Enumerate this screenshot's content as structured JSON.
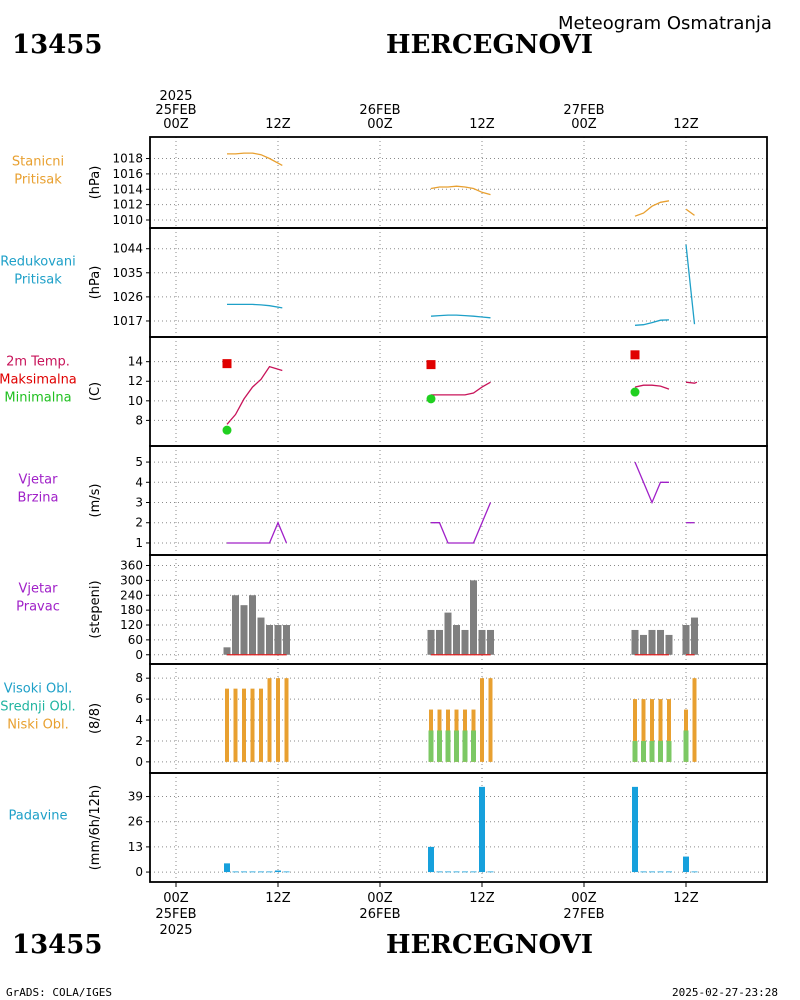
{
  "header": {
    "station_id": "13455",
    "station_name": "HERCEGNOVI",
    "product": "Meteogram Osmatranja"
  },
  "footer": {
    "station_id": "13455",
    "station_name": "HERCEGNOVI",
    "credit": "GrADS: COLA/IGES",
    "timestamp": "2025-02-27-23:28"
  },
  "time_axis": {
    "top_labels": [
      {
        "hour": 0,
        "lines": [
          "2025",
          "25FEB",
          "00Z"
        ]
      },
      {
        "hour": 12,
        "lines": [
          "12Z"
        ]
      },
      {
        "hour": 24,
        "lines": [
          "26FEB",
          "00Z"
        ]
      },
      {
        "hour": 36,
        "lines": [
          "12Z"
        ]
      },
      {
        "hour": 48,
        "lines": [
          "27FEB",
          "00Z"
        ]
      },
      {
        "hour": 60,
        "lines": [
          "12Z"
        ]
      }
    ],
    "bottom_labels": [
      {
        "hour": 0,
        "lines": [
          "00Z",
          "25FEB",
          "2025"
        ]
      },
      {
        "hour": 12,
        "lines": [
          "12Z"
        ]
      },
      {
        "hour": 24,
        "lines": [
          "00Z",
          "26FEB"
        ]
      },
      {
        "hour": 36,
        "lines": [
          "12Z"
        ]
      },
      {
        "hour": 48,
        "lines": [
          "00Z",
          "27FEB"
        ]
      },
      {
        "hour": 60,
        "lines": [
          "12Z"
        ]
      }
    ]
  },
  "chart_data": [
    {
      "type": "line",
      "panel": "stanicni-pritisak",
      "labels": [
        {
          "text": "Stanicni",
          "color": "#e8a030"
        },
        {
          "text": "Pritisak",
          "color": "#e8a030"
        }
      ],
      "ylabel": "(hPa)",
      "ylim": [
        1010,
        1019.5
      ],
      "yticks": [
        "1010",
        "1012",
        "1014",
        "1016",
        "1018"
      ],
      "yticks_values": [
        1010,
        1012,
        1014,
        1016,
        1018
      ],
      "color": "#e8a030",
      "segments": [
        [
          [
            6,
            1018.6
          ],
          [
            7,
            1018.6
          ],
          [
            8,
            1018.7
          ],
          [
            9,
            1018.7
          ],
          [
            10,
            1018.5
          ],
          [
            11,
            1018.0
          ],
          [
            12.5,
            1017.1
          ]
        ],
        [
          [
            30,
            1014.1
          ],
          [
            31,
            1014.3
          ],
          [
            32,
            1014.3
          ],
          [
            33,
            1014.4
          ],
          [
            34,
            1014.3
          ],
          [
            35,
            1014.1
          ],
          [
            36,
            1013.6
          ],
          [
            37,
            1013.3
          ]
        ],
        [
          [
            54,
            1010.5
          ],
          [
            55,
            1010.9
          ],
          [
            56,
            1011.8
          ],
          [
            57,
            1012.3
          ],
          [
            58,
            1012.5
          ]
        ],
        [
          [
            60,
            1011.4
          ],
          [
            61,
            1010.6
          ]
        ]
      ]
    },
    {
      "type": "line",
      "panel": "redukovani-pritisak",
      "labels": [
        {
          "text": "Redukovani",
          "color": "#1ea0c8"
        },
        {
          "text": "Pritisak",
          "color": "#1ea0c8"
        }
      ],
      "ylabel": "(hPa)",
      "ylim": [
        1014,
        1048
      ],
      "yticks": [
        "1017",
        "1026",
        "1035",
        "1044"
      ],
      "yticks_values": [
        1017,
        1026,
        1035,
        1044
      ],
      "color": "#1ea0c8",
      "segments": [
        [
          [
            6,
            1023.2
          ],
          [
            7,
            1023.2
          ],
          [
            8,
            1023.2
          ],
          [
            9,
            1023.2
          ],
          [
            10,
            1023.0
          ],
          [
            11,
            1022.7
          ],
          [
            12.5,
            1021.9
          ]
        ],
        [
          [
            30,
            1018.8
          ],
          [
            31,
            1019.0
          ],
          [
            32,
            1019.2
          ],
          [
            33,
            1019.2
          ],
          [
            34,
            1019.0
          ],
          [
            35,
            1018.8
          ],
          [
            36,
            1018.5
          ],
          [
            37,
            1018.2
          ]
        ],
        [
          [
            54,
            1015.4
          ],
          [
            55,
            1015.6
          ],
          [
            56,
            1016.4
          ],
          [
            57,
            1017.3
          ],
          [
            58,
            1017.4
          ]
        ],
        [
          [
            60,
            1045.5
          ],
          [
            61,
            1015.8
          ]
        ]
      ]
    },
    {
      "type": "line",
      "panel": "temperatura",
      "labels": [
        {
          "text": "2m Temp.",
          "color": "#c8145a"
        },
        {
          "text": "Maksimalna",
          "color": "#e00000"
        },
        {
          "text": "Minimalna",
          "color": "#20c020"
        }
      ],
      "ylabel": "(C)",
      "ylim": [
        6.2,
        15.5
      ],
      "yticks": [
        "8",
        "10",
        "12",
        "14"
      ],
      "yticks_values": [
        8,
        10,
        12,
        14
      ],
      "color": "#c8145a",
      "segments": [
        [
          [
            6,
            7.6
          ],
          [
            7,
            8.6
          ],
          [
            8,
            10.2
          ],
          [
            9,
            11.4
          ],
          [
            10,
            12.2
          ],
          [
            11,
            13.5
          ],
          [
            12.5,
            13.1
          ]
        ],
        [
          [
            30,
            10.6
          ],
          [
            31,
            10.6
          ],
          [
            32,
            10.6
          ],
          [
            33,
            10.6
          ],
          [
            34,
            10.6
          ],
          [
            35,
            10.8
          ],
          [
            36,
            11.4
          ],
          [
            37,
            11.9
          ]
        ],
        [
          [
            54,
            11.4
          ],
          [
            55,
            11.6
          ],
          [
            56,
            11.6
          ],
          [
            57,
            11.5
          ],
          [
            58,
            11.2
          ]
        ],
        [
          [
            60,
            11.9
          ],
          [
            61,
            11.8
          ],
          [
            61.3,
            11.9
          ]
        ]
      ],
      "maksimalna": [
        [
          6,
          13.8
        ],
        [
          30,
          13.7
        ],
        [
          54,
          14.7
        ]
      ],
      "minimalna": [
        [
          6,
          7.0
        ],
        [
          30,
          10.2
        ],
        [
          54,
          10.9
        ]
      ]
    },
    {
      "type": "line",
      "panel": "vjetar-brzina",
      "labels": [
        {
          "text": "Vjetar",
          "color": "#a020c8"
        },
        {
          "text": "Brzina",
          "color": "#a020c8"
        }
      ],
      "ylabel": "(m/s)",
      "ylim": [
        0.8,
        5.3
      ],
      "yticks": [
        "1",
        "2",
        "3",
        "4",
        "5"
      ],
      "yticks_values": [
        1,
        2,
        3,
        4,
        5
      ],
      "color": "#a020c8",
      "segments": [
        [
          [
            6,
            1
          ],
          [
            7,
            1
          ],
          [
            8,
            1
          ],
          [
            9,
            1
          ],
          [
            10,
            1
          ],
          [
            11,
            1
          ],
          [
            12,
            2
          ],
          [
            13,
            1
          ]
        ],
        [
          [
            30,
            2
          ],
          [
            31,
            2
          ],
          [
            32,
            1
          ],
          [
            33,
            1
          ],
          [
            34,
            1
          ],
          [
            35,
            1
          ],
          [
            37,
            3
          ]
        ],
        [
          [
            54,
            5
          ],
          [
            55,
            4
          ],
          [
            56,
            3
          ],
          [
            57,
            4
          ],
          [
            58,
            4
          ]
        ],
        [
          [
            60,
            2
          ],
          [
            61,
            2
          ]
        ]
      ]
    },
    {
      "type": "bar",
      "panel": "vjetar-pravac",
      "labels": [
        {
          "text": "Vjetar",
          "color": "#a020c8"
        },
        {
          "text": "Pravac",
          "color": "#a020c8"
        }
      ],
      "ylabel": "(stepeni)",
      "ylim": [
        -5,
        362
      ],
      "yticks": [
        "0",
        "60",
        "120",
        "180",
        "240",
        "300",
        "360"
      ],
      "yticks_values": [
        0,
        60,
        120,
        180,
        240,
        300,
        360
      ],
      "color": "#7f7f7f",
      "x": [
        6,
        7,
        8,
        9,
        10,
        11,
        12,
        13,
        30,
        31,
        32,
        33,
        34,
        35,
        36,
        37,
        54,
        55,
        56,
        57,
        58,
        60,
        61
      ],
      "values": [
        30,
        240,
        200,
        240,
        150,
        120,
        120,
        120,
        100,
        100,
        170,
        120,
        100,
        300,
        100,
        100,
        100,
        80,
        100,
        100,
        80,
        120,
        150
      ],
      "baseline_color": "#e02020"
    },
    {
      "type": "bar",
      "panel": "oblacnost",
      "labels": [
        {
          "text": "Visoki Obl.",
          "color": "#1ea0c8"
        },
        {
          "text": "Srednji Obl.",
          "color": "#20b4a0"
        },
        {
          "text": "Niski Obl.",
          "color": "#e8a030"
        }
      ],
      "ylabel": "(8/8)",
      "ylim": [
        -0.3,
        8.4
      ],
      "yticks": [
        "0",
        "2",
        "4",
        "6",
        "8"
      ],
      "yticks_values": [
        0,
        2,
        4,
        6,
        8
      ],
      "series": [
        {
          "label_ref": "Niski Obl.",
          "color": "#e8a030",
          "x": [
            6,
            7,
            8,
            9,
            10,
            11,
            12,
            13,
            30,
            31,
            32,
            33,
            34,
            35,
            36,
            37,
            54,
            55,
            56,
            57,
            58,
            60,
            61
          ],
          "values": [
            7,
            7,
            7,
            7,
            7,
            8,
            8,
            8,
            5,
            5,
            5,
            5,
            5,
            5,
            8,
            8,
            6,
            6,
            6,
            6,
            6,
            5,
            8
          ]
        },
        {
          "label_ref": "Srednji Obl.",
          "color": "#7cc864",
          "x": [
            30,
            31,
            32,
            33,
            34,
            35,
            54,
            55,
            56,
            57,
            58,
            60
          ],
          "values": [
            3,
            3,
            3,
            3,
            3,
            3,
            2,
            2,
            2,
            2,
            2,
            3
          ]
        }
      ]
    },
    {
      "type": "bar",
      "panel": "padavine",
      "labels": [
        {
          "text": "Padavine",
          "color": "#1ea0c8"
        }
      ],
      "ylabel": "(mm/6h/12h)",
      "ylim": [
        -1,
        46
      ],
      "yticks": [
        "0",
        "13",
        "26",
        "39"
      ],
      "yticks_values": [
        0,
        13,
        26,
        39
      ],
      "color": "#16a0dc",
      "x": [
        6,
        7,
        8,
        9,
        10,
        11,
        12,
        13,
        30,
        31,
        32,
        33,
        34,
        35,
        36,
        37,
        54,
        55,
        56,
        57,
        58,
        60,
        61
      ],
      "values": [
        4.5,
        0.3,
        0.3,
        0.3,
        0.3,
        0.3,
        0.8,
        0.3,
        13,
        0.3,
        0.3,
        0.3,
        0.3,
        0.3,
        44,
        0.3,
        44,
        0.3,
        0.3,
        0.3,
        0.3,
        8,
        0.3
      ]
    }
  ]
}
